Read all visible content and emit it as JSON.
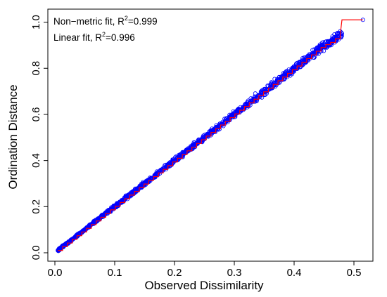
{
  "chart_data": {
    "type": "scatter",
    "xlabel": "Observed Dissimilarity",
    "ylabel": "Ordination Distance",
    "xlim": [
      0.0,
      0.52
    ],
    "ylim": [
      0.0,
      1.02
    ],
    "xticks": [
      "0.0",
      "0.1",
      "0.2",
      "0.3",
      "0.4",
      "0.5"
    ],
    "yticks": [
      "0.0",
      "0.2",
      "0.4",
      "0.6",
      "0.8",
      "1.0"
    ],
    "legend": {
      "position": "top-left",
      "nonmetric": {
        "prefix": "Non−metric fit, R",
        "exp": "2",
        "suffix": "=0.999"
      },
      "linear": {
        "prefix": "Linear fit, R",
        "exp": "2",
        "suffix": "=0.996"
      }
    },
    "point_color": "#0000ff",
    "fit_color": "#ff0000",
    "series": [
      {
        "type": "scatter",
        "x": [
          0.005,
          0.012,
          0.02,
          0.03,
          0.04,
          0.05,
          0.06,
          0.07,
          0.08,
          0.09,
          0.1,
          0.11,
          0.12,
          0.13,
          0.14,
          0.15,
          0.16,
          0.17,
          0.18,
          0.19,
          0.2,
          0.21,
          0.22,
          0.23,
          0.24,
          0.25,
          0.26,
          0.27,
          0.28,
          0.29,
          0.3,
          0.31,
          0.32,
          0.33,
          0.34,
          0.35,
          0.36,
          0.37,
          0.38,
          0.39,
          0.4,
          0.41,
          0.42,
          0.43,
          0.44,
          0.45,
          0.46,
          0.47,
          0.48,
          0.515
        ],
        "y": [
          0.01,
          0.025,
          0.04,
          0.06,
          0.08,
          0.1,
          0.12,
          0.14,
          0.16,
          0.18,
          0.2,
          0.22,
          0.24,
          0.26,
          0.28,
          0.3,
          0.32,
          0.34,
          0.36,
          0.38,
          0.4,
          0.42,
          0.44,
          0.46,
          0.48,
          0.5,
          0.52,
          0.54,
          0.56,
          0.58,
          0.6,
          0.62,
          0.64,
          0.66,
          0.68,
          0.7,
          0.72,
          0.74,
          0.76,
          0.78,
          0.8,
          0.82,
          0.84,
          0.86,
          0.88,
          0.9,
          0.91,
          0.93,
          0.95,
          1.01
        ]
      },
      {
        "type": "step",
        "x": [
          0.005,
          0.05,
          0.1,
          0.15,
          0.2,
          0.25,
          0.3,
          0.35,
          0.38,
          0.4,
          0.42,
          0.44,
          0.46,
          0.48,
          0.515
        ],
        "y": [
          0.01,
          0.1,
          0.2,
          0.3,
          0.4,
          0.5,
          0.6,
          0.7,
          0.76,
          0.8,
          0.84,
          0.88,
          0.92,
          1.01,
          1.01
        ]
      }
    ]
  }
}
